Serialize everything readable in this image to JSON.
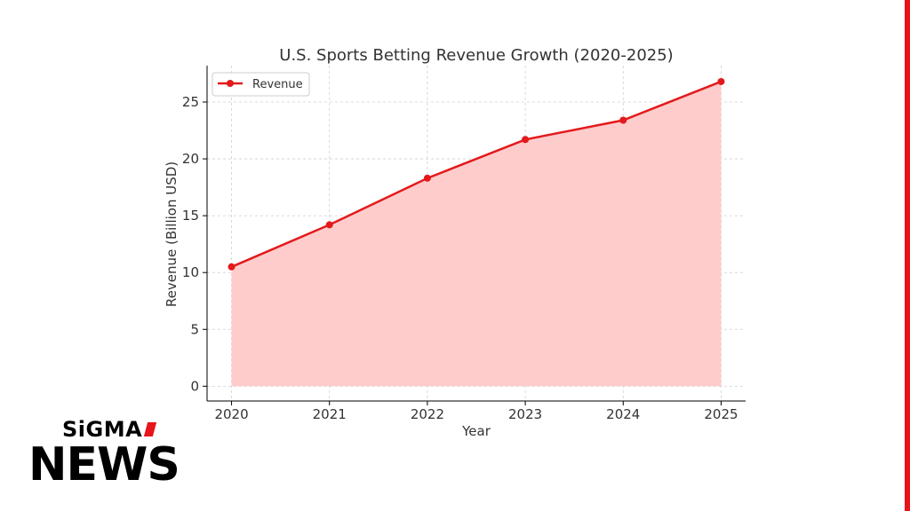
{
  "brand": {
    "top_text": "SiGMA",
    "main_text": "NEWS",
    "accent_color": "#e8141c"
  },
  "chart_data": {
    "type": "area",
    "title": "U.S. Sports Betting Revenue Growth (2020-2025)",
    "xlabel": "Year",
    "ylabel": "Revenue (Billion USD)",
    "x": [
      2020,
      2021,
      2022,
      2023,
      2024,
      2025
    ],
    "series": [
      {
        "name": "Revenue",
        "values": [
          10.5,
          14.2,
          18.3,
          21.7,
          23.4,
          26.8
        ],
        "color": "#e31a1c",
        "fill": "#ffcccc"
      }
    ],
    "xlim": [
      2019.75,
      2025.25
    ],
    "ylim": [
      -1.3,
      28.2
    ],
    "yticks": [
      0,
      5,
      10,
      15,
      20,
      25
    ],
    "xticks": [
      2020,
      2021,
      2022,
      2023,
      2024,
      2025
    ],
    "grid": true,
    "legend": "top-left"
  }
}
